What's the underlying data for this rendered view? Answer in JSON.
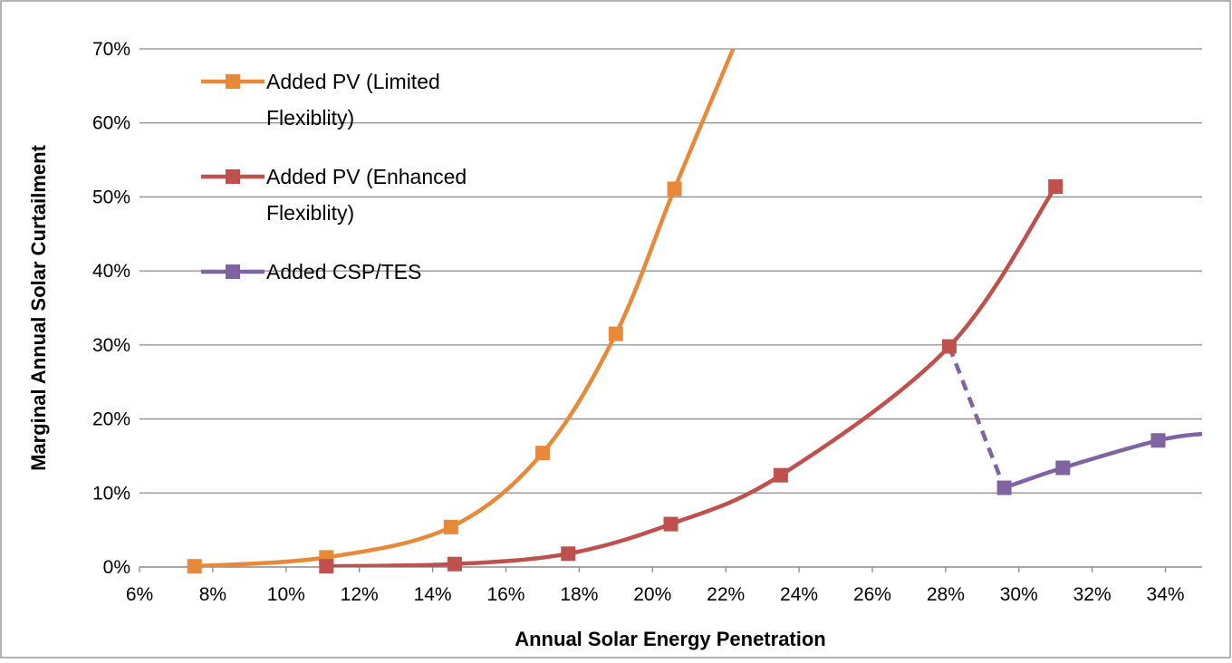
{
  "chart_data": {
    "type": "line",
    "title": "",
    "xlabel": "Annual Solar Energy Penetration",
    "ylabel": "Marginal Annual Solar Curtailment",
    "xlim": [
      6,
      35
    ],
    "ylim": [
      0,
      70
    ],
    "x_ticks": [
      "6%",
      "8%",
      "10%",
      "12%",
      "14%",
      "16%",
      "18%",
      "20%",
      "22%",
      "24%",
      "26%",
      "28%",
      "30%",
      "32%",
      "34%"
    ],
    "y_ticks": [
      "0%",
      "10%",
      "20%",
      "30%",
      "40%",
      "50%",
      "60%",
      "70%"
    ],
    "grid": "horizontal",
    "legend_position": "top-left",
    "series": [
      {
        "name": "Added PV (Limited Flexiblity)",
        "legend_lines": [
          "Added PV (Limited",
          "Flexiblity)"
        ],
        "color": "#E8893A",
        "x": [
          7.5,
          11.1,
          14.5,
          17.0,
          19.0,
          20.6
        ],
        "y": [
          0.1,
          1.3,
          5.4,
          15.4,
          31.5,
          51.1
        ],
        "curve_continues_to": [
          22.2,
          70
        ]
      },
      {
        "name": "Added PV (Enhanced Flexiblity)",
        "legend_lines": [
          "Added PV (Enhanced",
          "Flexiblity)"
        ],
        "color": "#C0504D",
        "x": [
          11.1,
          14.6,
          17.7,
          20.5,
          23.5,
          28.1,
          31.0
        ],
        "y": [
          0.1,
          0.4,
          1.8,
          5.8,
          12.4,
          29.8,
          51.4
        ]
      },
      {
        "name": "Added CSP/TES",
        "legend_lines": [
          "Added CSP/TES"
        ],
        "color": "#8064A2",
        "x": [
          29.6,
          31.2,
          33.8
        ],
        "y": [
          10.7,
          13.4,
          17.1
        ],
        "curve_continues_to": [
          35.0,
          18.0
        ],
        "dashed_connector_from": [
          28.1,
          29.8
        ]
      }
    ]
  }
}
